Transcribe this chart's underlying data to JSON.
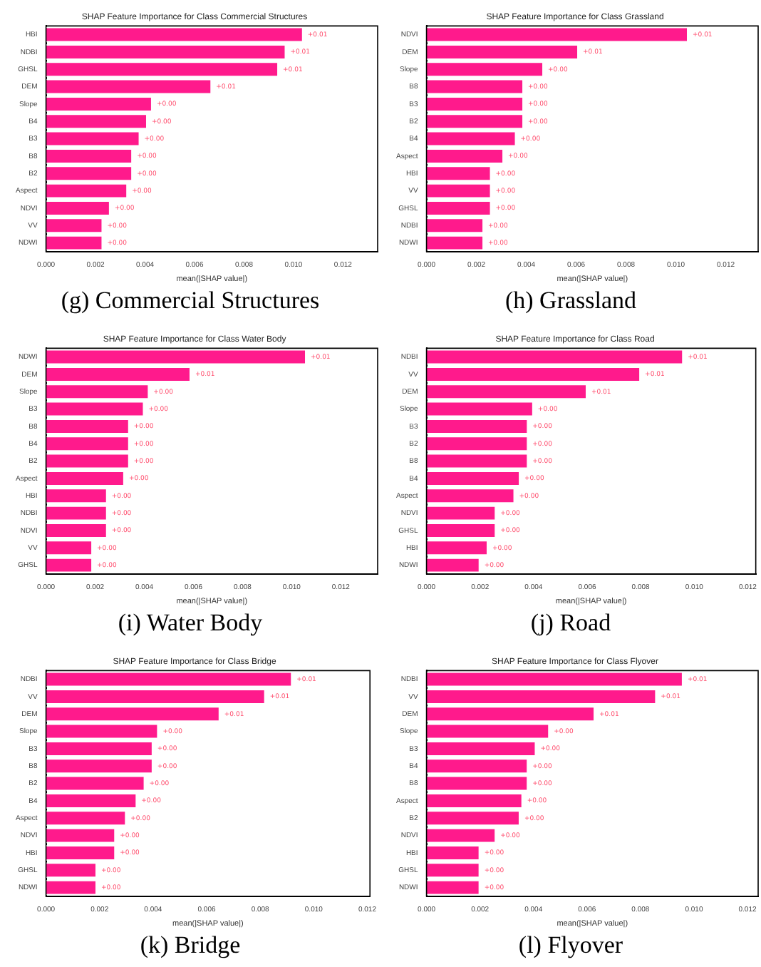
{
  "chart_data": [
    {
      "type": "bar",
      "orientation": "horizontal",
      "title": "SHAP Feature Importance for Class Commercial Structures",
      "xlabel": "mean(|SHAP value|)",
      "annotations": [
        "(g) Commercial Structures"
      ],
      "categories": [
        "HBI",
        "NDBI",
        "GHSL",
        "DEM",
        "Slope",
        "B4",
        "B3",
        "B8",
        "B2",
        "Aspect",
        "NDVI",
        "VV",
        "NDWI"
      ],
      "series": [
        {
          "color": "#ff1a8c",
          "values": [
            0.0104,
            0.0097,
            0.0094,
            0.0067,
            0.0043,
            0.0041,
            0.0038,
            0.0035,
            0.0035,
            0.0033,
            0.0026,
            0.0023,
            0.0023
          ],
          "value_labels": [
            "+0.01",
            "+0.01",
            "+0.01",
            "+0.01",
            "+0.00",
            "+0.00",
            "+0.00",
            "+0.00",
            "+0.00",
            "+0.00",
            "+0.00",
            "+0.00",
            "+0.00"
          ]
        }
      ],
      "xlim": [
        0,
        0.0134
      ],
      "xticks": [
        {
          "value": 0,
          "label": "0.000"
        },
        {
          "value": 0.002,
          "label": "0.002"
        },
        {
          "value": 0.004,
          "label": "0.004"
        },
        {
          "value": 0.006,
          "label": "0.006"
        },
        {
          "value": 0.008,
          "label": "0.008"
        },
        {
          "value": 0.01,
          "label": "0.010"
        },
        {
          "value": 0.012,
          "label": "0.012"
        }
      ],
      "grid": false
    },
    {
      "type": "bar",
      "orientation": "horizontal",
      "title": "SHAP Feature Importance for Class Grassland",
      "xlabel": "mean(|SHAP value|)",
      "annotations": [
        "(h) Grassland"
      ],
      "categories": [
        "NDVI",
        "DEM",
        "Slope",
        "B8",
        "B3",
        "B2",
        "B4",
        "Aspect",
        "HBI",
        "VV",
        "GHSL",
        "NDBI",
        "NDWI"
      ],
      "series": [
        {
          "color": "#ff1a8c",
          "values": [
            0.0105,
            0.0061,
            0.0047,
            0.0039,
            0.0039,
            0.0039,
            0.0036,
            0.0031,
            0.0026,
            0.0026,
            0.0026,
            0.0023,
            0.0023
          ],
          "value_labels": [
            "+0.01",
            "+0.01",
            "+0.00",
            "+0.00",
            "+0.00",
            "+0.00",
            "+0.00",
            "+0.00",
            "+0.00",
            "+0.00",
            "+0.00",
            "+0.00",
            "+0.00"
          ]
        }
      ],
      "xlim": [
        0,
        0.0133
      ],
      "xticks": [
        {
          "value": 0,
          "label": "0.000"
        },
        {
          "value": 0.002,
          "label": "0.002"
        },
        {
          "value": 0.004,
          "label": "0.004"
        },
        {
          "value": 0.006,
          "label": "0.006"
        },
        {
          "value": 0.008,
          "label": "0.008"
        },
        {
          "value": 0.01,
          "label": "0.010"
        },
        {
          "value": 0.012,
          "label": "0.012"
        }
      ],
      "grid": false
    },
    {
      "type": "bar",
      "orientation": "horizontal",
      "title": "SHAP Feature Importance for Class Water Body",
      "xlabel": "mean(|SHAP value|)",
      "annotations": [
        "(i) Water Body"
      ],
      "categories": [
        "NDWI",
        "DEM",
        "Slope",
        "B3",
        "B8",
        "B4",
        "B2",
        "Aspect",
        "HBI",
        "NDBI",
        "NDVI",
        "VV",
        "GHSL"
      ],
      "series": [
        {
          "color": "#ff1a8c",
          "values": [
            0.0106,
            0.0059,
            0.0042,
            0.004,
            0.0034,
            0.0034,
            0.0034,
            0.0032,
            0.0025,
            0.0025,
            0.0025,
            0.0019,
            0.0019
          ],
          "value_labels": [
            "+0.01",
            "+0.01",
            "+0.00",
            "+0.00",
            "+0.00",
            "+0.00",
            "+0.00",
            "+0.00",
            "+0.00",
            "+0.00",
            "+0.00",
            "+0.00",
            "+0.00"
          ]
        }
      ],
      "xlim": [
        0,
        0.0135
      ],
      "xticks": [
        {
          "value": 0,
          "label": "0.000"
        },
        {
          "value": 0.002,
          "label": "0.002"
        },
        {
          "value": 0.004,
          "label": "0.004"
        },
        {
          "value": 0.006,
          "label": "0.006"
        },
        {
          "value": 0.008,
          "label": "0.008"
        },
        {
          "value": 0.01,
          "label": "0.010"
        },
        {
          "value": 0.012,
          "label": "0.012"
        }
      ],
      "grid": false
    },
    {
      "type": "bar",
      "orientation": "horizontal",
      "title": "SHAP Feature Importance for Class Road",
      "xlabel": "mean(|SHAP value|)",
      "annotations": [
        "(j) Road"
      ],
      "categories": [
        "NDBI",
        "VV",
        "DEM",
        "Slope",
        "B3",
        "B2",
        "B8",
        "B4",
        "Aspect",
        "NDVI",
        "GHSL",
        "HBI",
        "NDWI"
      ],
      "series": [
        {
          "color": "#ff1a8c",
          "values": [
            0.0096,
            0.008,
            0.006,
            0.004,
            0.0038,
            0.0038,
            0.0038,
            0.0035,
            0.0033,
            0.0026,
            0.0026,
            0.0023,
            0.002
          ],
          "value_labels": [
            "+0.01",
            "+0.01",
            "+0.01",
            "+0.00",
            "+0.00",
            "+0.00",
            "+0.00",
            "+0.00",
            "+0.00",
            "+0.00",
            "+0.00",
            "+0.00",
            "+0.00"
          ]
        }
      ],
      "xlim": [
        0,
        0.0123
      ],
      "xticks": [
        {
          "value": 0,
          "label": "0.000"
        },
        {
          "value": 0.002,
          "label": "0.002"
        },
        {
          "value": 0.004,
          "label": "0.004"
        },
        {
          "value": 0.006,
          "label": "0.006"
        },
        {
          "value": 0.008,
          "label": "0.008"
        },
        {
          "value": 0.01,
          "label": "0.010"
        },
        {
          "value": 0.012,
          "label": "0.012"
        }
      ],
      "grid": false
    },
    {
      "type": "bar",
      "orientation": "horizontal",
      "title": "SHAP Feature Importance for Class Bridge",
      "xlabel": "mean(|SHAP value|)",
      "annotations": [
        "(k) Bridge"
      ],
      "categories": [
        "NDBI",
        "VV",
        "DEM",
        "Slope",
        "B3",
        "B8",
        "B2",
        "B4",
        "Aspect",
        "NDVI",
        "HBI",
        "GHSL",
        "NDWI"
      ],
      "series": [
        {
          "color": "#ff1a8c",
          "values": [
            0.0092,
            0.0082,
            0.0065,
            0.0042,
            0.004,
            0.004,
            0.0037,
            0.0034,
            0.003,
            0.0026,
            0.0026,
            0.0019,
            0.0019
          ],
          "value_labels": [
            "+0.01",
            "+0.01",
            "+0.01",
            "+0.00",
            "+0.00",
            "+0.00",
            "+0.00",
            "+0.00",
            "+0.00",
            "+0.00",
            "+0.00",
            "+0.00",
            "+0.00"
          ]
        }
      ],
      "xlim": [
        0,
        0.0121
      ],
      "xticks": [
        {
          "value": 0,
          "label": "0.000"
        },
        {
          "value": 0.002,
          "label": "0.002"
        },
        {
          "value": 0.004,
          "label": "0.004"
        },
        {
          "value": 0.006,
          "label": "0.006"
        },
        {
          "value": 0.008,
          "label": "0.008"
        },
        {
          "value": 0.01,
          "label": "0.010"
        },
        {
          "value": 0.012,
          "label": "0.012"
        }
      ],
      "grid": false
    },
    {
      "type": "bar",
      "orientation": "horizontal",
      "title": "SHAP Feature Importance for Class Flyover",
      "xlabel": "mean(|SHAP value|)",
      "annotations": [
        "(l) Flyover"
      ],
      "categories": [
        "NDBI",
        "VV",
        "DEM",
        "Slope",
        "B3",
        "B4",
        "B8",
        "Aspect",
        "B2",
        "NDVI",
        "HBI",
        "GHSL",
        "NDWI"
      ],
      "series": [
        {
          "color": "#ff1a8c",
          "values": [
            0.0096,
            0.0086,
            0.0063,
            0.0046,
            0.0041,
            0.0038,
            0.0038,
            0.0036,
            0.0035,
            0.0026,
            0.002,
            0.002,
            0.002
          ],
          "value_labels": [
            "+0.01",
            "+0.01",
            "+0.01",
            "+0.00",
            "+0.00",
            "+0.00",
            "+0.00",
            "+0.00",
            "+0.00",
            "+0.00",
            "+0.00",
            "+0.00",
            "+0.00"
          ]
        }
      ],
      "xlim": [
        0,
        0.0124
      ],
      "xticks": [
        {
          "value": 0,
          "label": "0.000"
        },
        {
          "value": 0.002,
          "label": "0.002"
        },
        {
          "value": 0.004,
          "label": "0.004"
        },
        {
          "value": 0.006,
          "label": "0.006"
        },
        {
          "value": 0.008,
          "label": "0.008"
        },
        {
          "value": 0.01,
          "label": "0.010"
        },
        {
          "value": 0.012,
          "label": "0.012"
        }
      ],
      "grid": false
    }
  ]
}
